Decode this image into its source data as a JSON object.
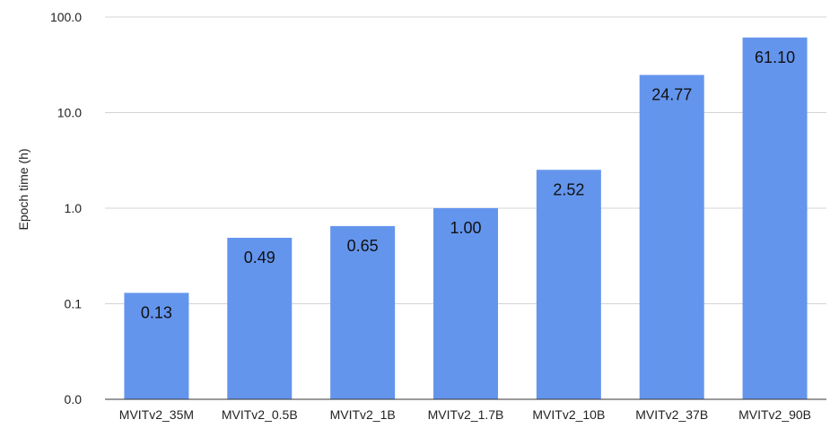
{
  "chart_data": {
    "type": "bar",
    "title": "",
    "xlabel": "",
    "ylabel": "Epoch time (h)",
    "yscale": "log",
    "ylim": [
      0.01,
      100
    ],
    "yticks": [
      0.01,
      0.1,
      1,
      10,
      100
    ],
    "ytick_labels": [
      "0.0",
      "0.1",
      "1.0",
      "10.0",
      "100.0"
    ],
    "grid": true,
    "legend": "none",
    "categories": [
      "MVITv2_35M",
      "MVITv2_0.5B",
      "MVITv2_1B",
      "MVITv2_1.7B",
      "MVITv2_10B",
      "MVITv2_37B",
      "MVITv2_90B"
    ],
    "values": [
      0.13,
      0.49,
      0.65,
      1.0,
      2.52,
      24.77,
      61.1
    ],
    "data_labels": [
      "0.13",
      "0.49",
      "0.65",
      "1.00",
      "2.52",
      "24.77",
      "61.10"
    ],
    "colors": {
      "bar": "#6495ed",
      "grid": "#d3d3d3",
      "axis": "#333333"
    }
  }
}
